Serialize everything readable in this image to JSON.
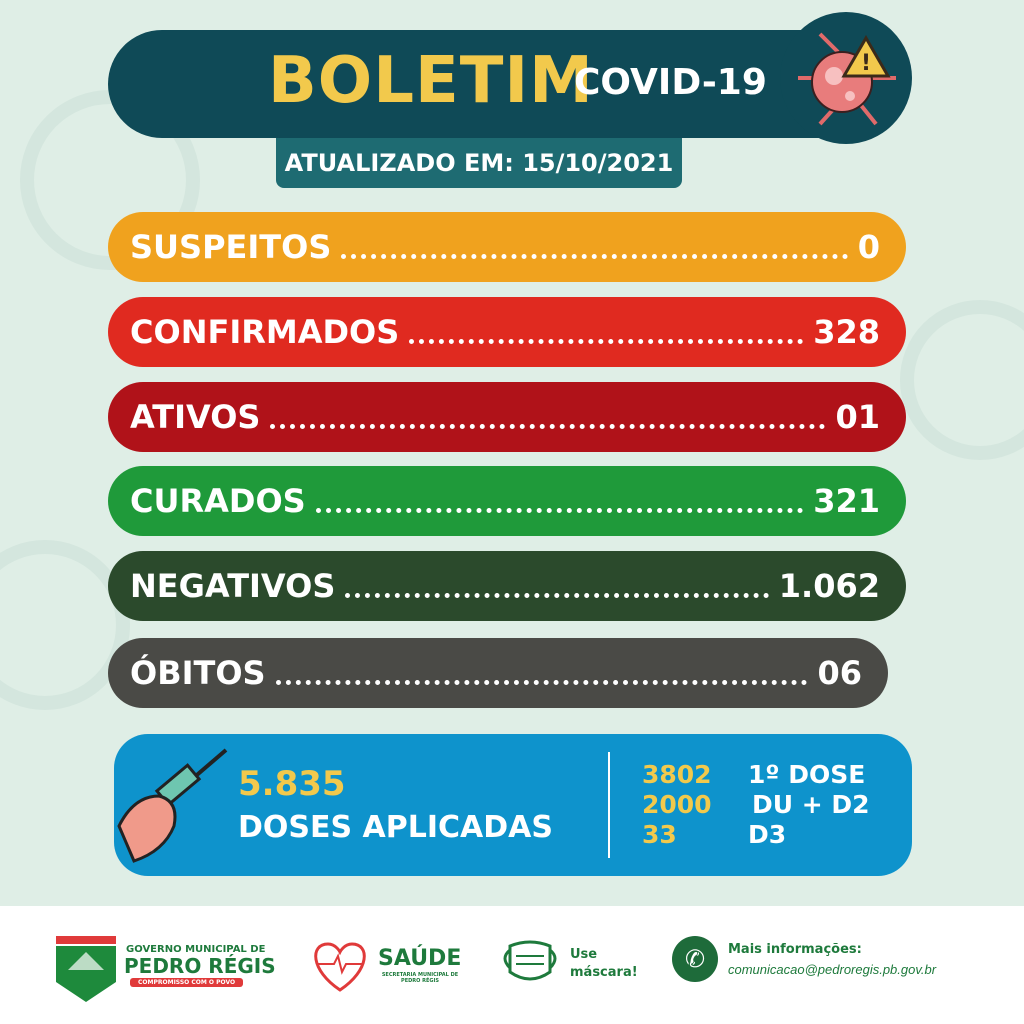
{
  "header": {
    "title": "BOLETIM",
    "subtitle": "COVID-19",
    "updated": "ATUALIZADO EM: 15/10/2021"
  },
  "stats": [
    {
      "label": "SUSPEITOS",
      "value": "0",
      "color": "#f0a21e"
    },
    {
      "label": "CONFIRMADOS",
      "value": "328",
      "color": "#e02a20"
    },
    {
      "label": "ATIVOS",
      "value": "01",
      "color": "#b01219"
    },
    {
      "label": "CURADOS",
      "value": "321",
      "color": "#1f9a3a"
    },
    {
      "label": "NEGATIVOS",
      "value": "1.062",
      "color": "#2b4a2c"
    },
    {
      "label": "ÓBITOS",
      "value": "06",
      "color": "#4a4a46"
    }
  ],
  "vaccination": {
    "total": "5.835",
    "total_label": "DOSES APLICADAS",
    "doses": [
      {
        "count": "3802",
        "label": "1º DOSE"
      },
      {
        "count": "2000",
        "label": "DU + D2"
      },
      {
        "count": "33",
        "label": "D3"
      }
    ]
  },
  "footer": {
    "gov_line1": "GOVERNO MUNICIPAL DE",
    "gov_line2": "PEDRO RÉGIS",
    "gov_motto": "COMPROMISSO COM O POVO",
    "saude": "SAÚDE",
    "saude_sub": "SECRETARIA MUNICIPAL DE PEDRO RÉGIS",
    "mask": "Use máscara!",
    "info_label": "Mais informações:",
    "email": "comunicacao@pedroregis.pb.gov.br"
  }
}
